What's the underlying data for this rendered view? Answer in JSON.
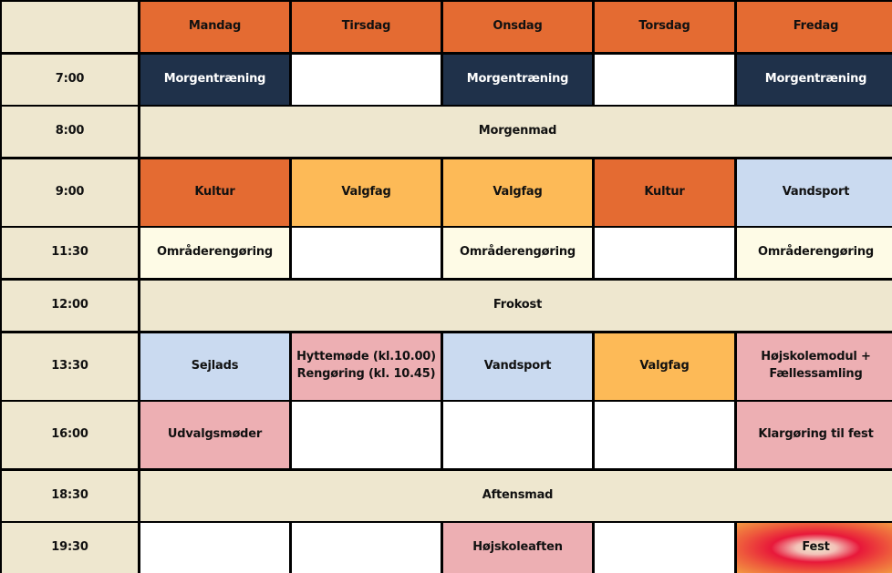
{
  "colors": {
    "header": "#E46B32",
    "time": "#EEE7CF",
    "navy": "#1F314A",
    "white": "#FFFFFF",
    "meal": "#EEE7CF",
    "orange": "#E46B32",
    "yellow": "#FDBA57",
    "blue": "#CADAF0",
    "cream": "#FEFBE6",
    "pink": "#EDAFB3",
    "fest_center": "#E8183A",
    "fest_edge": "#F29A42"
  },
  "schedule": {
    "days": [
      "Mandag",
      "Tirsdag",
      "Onsdag",
      "Torsdag",
      "Fredag"
    ],
    "rows": [
      {
        "time": "7:00",
        "cells": [
          "Morgentræning",
          "",
          "Morgentræning",
          "",
          "Morgentræning"
        ]
      },
      {
        "time": "8:00",
        "span": "Morgenmad"
      },
      {
        "time": "9:00",
        "cells": [
          "Kultur",
          "Valgfag",
          "Valgfag",
          "Kultur",
          "Vandsport"
        ]
      },
      {
        "time": "11:30",
        "cells": [
          "Områderengøring",
          "",
          "Områderengøring",
          "",
          "Områderengøring"
        ]
      },
      {
        "time": "12:00",
        "span": "Frokost"
      },
      {
        "time": "13:30",
        "cells": [
          "Sejlads",
          "Hyttemøde (kl.10.00)\nRengøring (kl. 10.45)",
          "Vandsport",
          "Valgfag",
          "Højskolemodul +\nFællessamling"
        ]
      },
      {
        "time": "16:00",
        "cells": [
          "Udvalgsmøder",
          "",
          "",
          "",
          "Klargøring til fest"
        ]
      },
      {
        "time": "18:30",
        "span": "Aftensmad"
      },
      {
        "time": "19:30",
        "cells": [
          "",
          "",
          "Højskoleaften",
          "",
          "Fest"
        ]
      }
    ]
  }
}
